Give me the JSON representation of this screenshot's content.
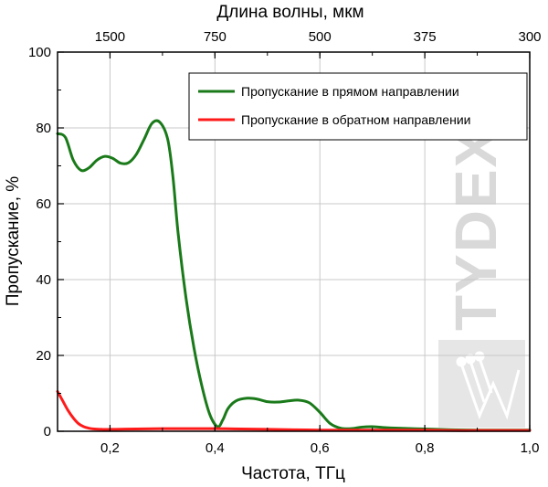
{
  "chart_data": {
    "type": "line",
    "xlabel": "Частота, ТГц",
    "x2label": "Длина волны, мкм",
    "ylabel": "Пропускание, %",
    "xlim": [
      0.1,
      1.0
    ],
    "ylim": [
      0,
      100
    ],
    "x_ticks": [
      0.2,
      0.4,
      0.6,
      0.8,
      1.0
    ],
    "x_tick_labels": [
      "0,2",
      "0,4",
      "0,6",
      "0,8",
      "1,0"
    ],
    "y_ticks": [
      0,
      20,
      40,
      60,
      80,
      100
    ],
    "y_tick_labels": [
      "0",
      "20",
      "40",
      "60",
      "80",
      "100"
    ],
    "top_ticks": [
      0.2,
      0.4,
      0.6,
      0.8,
      1.0
    ],
    "top_tick_labels": [
      "1500",
      "750",
      "500",
      "375",
      "300"
    ],
    "grid": true,
    "legend_position": "top-right",
    "watermark": "TYDEX",
    "series": [
      {
        "name": "Пропускание в прямом направлении",
        "color": "#1a7a1a",
        "x": [
          0.1,
          0.115,
          0.13,
          0.145,
          0.16,
          0.175,
          0.19,
          0.205,
          0.22,
          0.235,
          0.25,
          0.265,
          0.28,
          0.295,
          0.31,
          0.32,
          0.33,
          0.345,
          0.36,
          0.375,
          0.39,
          0.405,
          0.415,
          0.425,
          0.44,
          0.46,
          0.48,
          0.5,
          0.52,
          0.54,
          0.56,
          0.58,
          0.6,
          0.62,
          0.64,
          0.66,
          0.68,
          0.7,
          0.72,
          0.75,
          0.8,
          0.85,
          0.9,
          0.95,
          1.0
        ],
        "y": [
          78.5,
          77.5,
          71.5,
          68.8,
          69.5,
          71.5,
          72.5,
          72.0,
          70.7,
          70.8,
          73.0,
          77.0,
          81.2,
          81.5,
          77.0,
          67.0,
          52.0,
          35.0,
          22.0,
          12.0,
          4.5,
          1.2,
          3.0,
          6.0,
          8.0,
          8.7,
          8.5,
          7.8,
          7.7,
          8.0,
          8.2,
          7.5,
          5.0,
          2.0,
          0.8,
          0.7,
          1.1,
          1.2,
          1.0,
          0.8,
          0.6,
          0.4,
          0.3,
          0.3,
          0.3
        ]
      },
      {
        "name": "Пропускание в обратном направлении",
        "color": "#ff1a1a",
        "x": [
          0.1,
          0.11,
          0.12,
          0.13,
          0.14,
          0.15,
          0.16,
          0.17,
          0.185,
          0.2,
          0.25,
          0.3,
          0.35,
          0.4,
          0.45,
          0.5,
          0.55,
          0.6,
          0.65,
          0.7,
          0.75,
          0.8,
          0.85,
          0.9,
          0.95,
          1.0
        ],
        "y": [
          10.5,
          8.0,
          5.5,
          3.5,
          2.0,
          1.2,
          0.8,
          0.6,
          0.5,
          0.5,
          0.6,
          0.7,
          0.7,
          0.7,
          0.6,
          0.5,
          0.4,
          0.3,
          0.3,
          0.3,
          0.3,
          0.3,
          0.2,
          0.2,
          0.2,
          0.2
        ]
      }
    ]
  }
}
